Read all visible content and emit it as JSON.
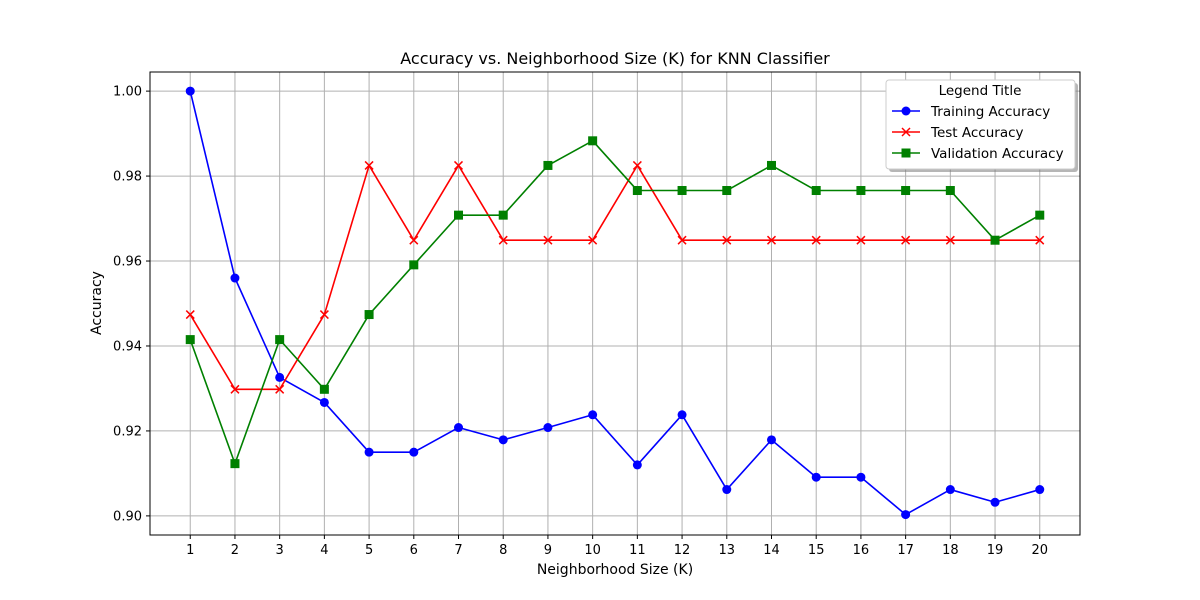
{
  "chart_data": {
    "type": "line",
    "title": "Accuracy vs. Neighborhood Size (K) for KNN Classifier",
    "xlabel": "Neighborhood Size (K)",
    "ylabel": "Accuracy",
    "x": [
      1,
      2,
      3,
      4,
      5,
      6,
      7,
      8,
      9,
      10,
      11,
      12,
      13,
      14,
      15,
      16,
      17,
      18,
      19,
      20
    ],
    "xticks": [
      "1",
      "2",
      "3",
      "4",
      "5",
      "6",
      "7",
      "8",
      "9",
      "10",
      "11",
      "12",
      "13",
      "14",
      "15",
      "16",
      "17",
      "18",
      "19",
      "20"
    ],
    "yticks": [
      "0.90",
      "0.92",
      "0.94",
      "0.96",
      "0.98",
      "1.00"
    ],
    "ytick_values": [
      0.9,
      0.92,
      0.94,
      0.96,
      0.98,
      1.0
    ],
    "xlim": [
      0.1,
      20.9
    ],
    "ylim": [
      0.8955,
      1.0045
    ],
    "grid": true,
    "legend": {
      "title": "Legend Title",
      "placement": "top-right"
    },
    "series": [
      {
        "name": "Training Accuracy",
        "color": "#0000ff",
        "marker": "circle",
        "values": [
          1.0,
          0.956,
          0.9326,
          0.9267,
          0.915,
          0.915,
          0.9208,
          0.9179,
          0.9208,
          0.9238,
          0.912,
          0.9238,
          0.9062,
          0.9179,
          0.9091,
          0.9091,
          0.9003,
          0.9062,
          0.9032,
          0.9062
        ]
      },
      {
        "name": "Test Accuracy",
        "color": "#ff0000",
        "marker": "x",
        "values": [
          0.9474,
          0.9298,
          0.9298,
          0.9474,
          0.9825,
          0.9649,
          0.9825,
          0.9649,
          0.9649,
          0.9649,
          0.9825,
          0.9649,
          0.9649,
          0.9649,
          0.9649,
          0.9649,
          0.9649,
          0.9649,
          0.9649,
          0.9649
        ]
      },
      {
        "name": "Validation Accuracy",
        "color": "#008000",
        "marker": "square",
        "values": [
          0.9415,
          0.9123,
          0.9415,
          0.9298,
          0.9474,
          0.9591,
          0.9708,
          0.9708,
          0.9825,
          0.9883,
          0.9766,
          0.9766,
          0.9766,
          0.9825,
          0.9766,
          0.9766,
          0.9766,
          0.9766,
          0.9649,
          0.9708
        ]
      }
    ]
  }
}
